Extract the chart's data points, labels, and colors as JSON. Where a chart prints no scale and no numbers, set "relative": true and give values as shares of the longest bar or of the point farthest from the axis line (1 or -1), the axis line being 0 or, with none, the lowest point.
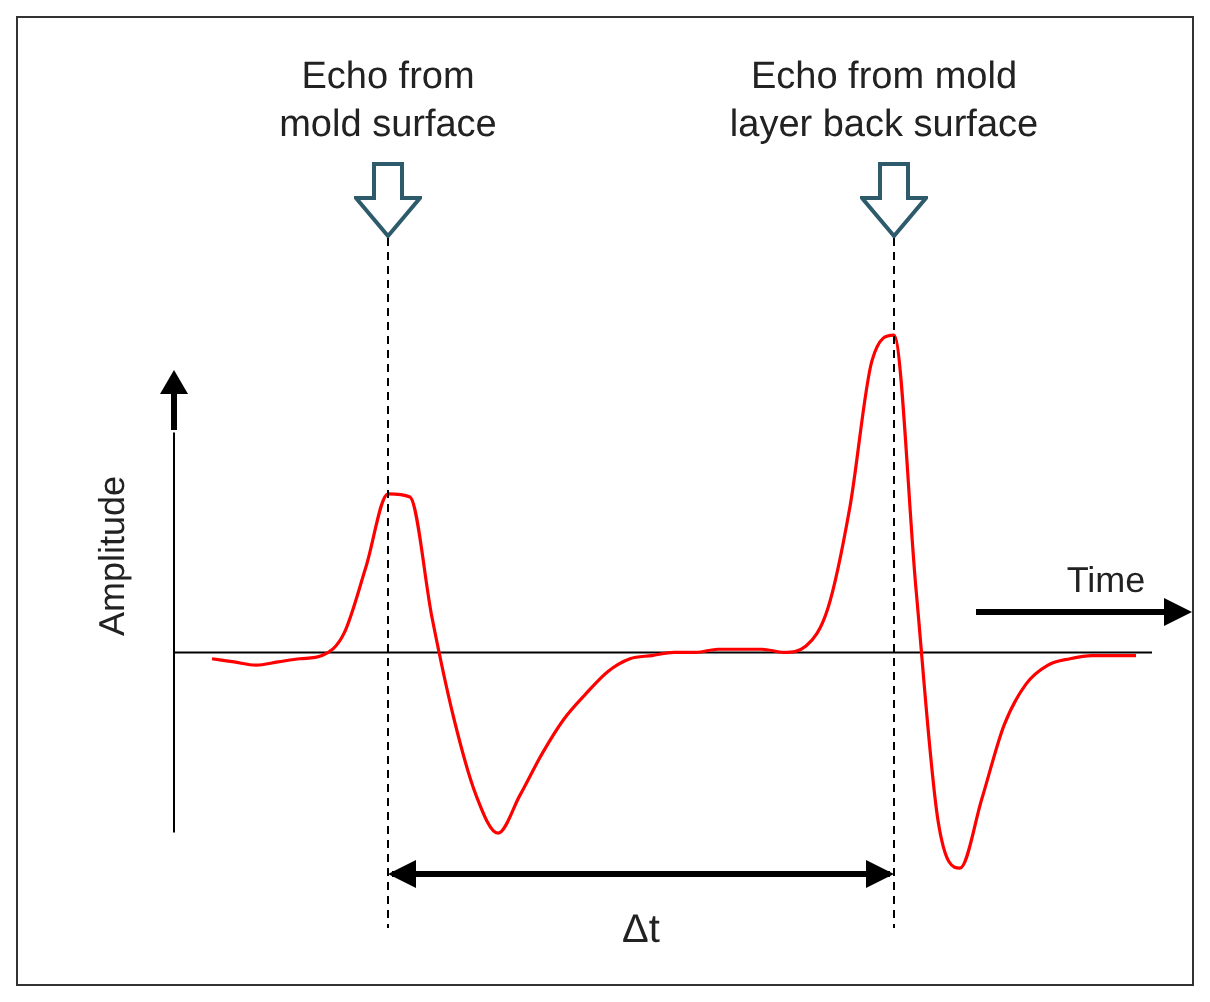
{
  "chart_data": {
    "type": "line",
    "relative": true,
    "xlabel": "Time",
    "ylabel": "Amplitude",
    "color": "#ff0000",
    "marker": "none",
    "line_style": "solid",
    "legend": false,
    "annotations": [
      "Echo from mold surface",
      "Echo from mold layer back surface",
      "Δt"
    ],
    "categories": [
      null,
      null,
      null,
      null,
      null,
      null,
      null,
      null,
      null,
      null,
      null,
      null,
      null,
      null,
      null,
      null,
      null,
      null,
      null,
      null,
      null,
      null,
      null,
      null,
      null,
      null,
      null,
      null,
      null,
      null,
      null,
      null,
      null,
      null,
      null,
      null,
      null,
      null,
      null,
      null,
      null,
      null,
      null
    ],
    "values": [
      -0.02,
      -0.03,
      -0.04,
      -0.03,
      -0.02,
      -0.01,
      0.06,
      0.27,
      0.5,
      0.49,
      0.11,
      -0.21,
      -0.45,
      -0.57,
      -0.45,
      -0.32,
      -0.21,
      -0.13,
      -0.06,
      -0.02,
      -0.01,
      0,
      0,
      0.01,
      0.01,
      0.01,
      0,
      0.02,
      0.14,
      0.46,
      0.92,
      1,
      0.2,
      -0.53,
      -0.68,
      -0.46,
      -0.23,
      -0.1,
      -0.04,
      -0.02,
      -0.01,
      -0.01,
      -0.01
    ]
  }
}
